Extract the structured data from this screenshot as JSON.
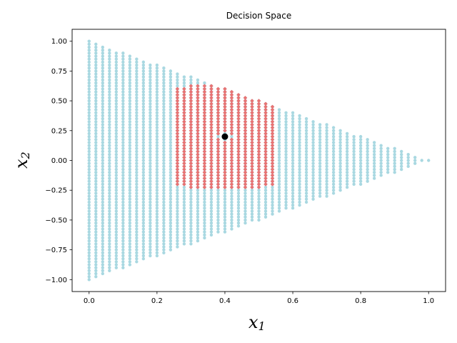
{
  "chart_data": {
    "type": "scatter",
    "title": "Decision Space",
    "xlabel": {
      "base": "x",
      "sub": "1"
    },
    "ylabel": {
      "base": "x",
      "sub": "2"
    },
    "xlim": [
      -0.05,
      1.05
    ],
    "ylim": [
      -1.1,
      1.1
    ],
    "xticks": [
      0.0,
      0.2,
      0.4,
      0.6,
      0.8,
      1.0
    ],
    "xtick_labels": [
      "0.0",
      "0.2",
      "0.4",
      "0.6",
      "0.8",
      "1.0"
    ],
    "yticks": [
      -1.0,
      -0.75,
      -0.5,
      -0.25,
      0.0,
      0.25,
      0.5,
      0.75,
      1.0
    ],
    "ytick_labels": [
      "−1.00",
      "−0.75",
      "−0.50",
      "−0.25",
      "0.00",
      "0.25",
      "0.50",
      "0.75",
      "1.00"
    ],
    "grid": false,
    "series": [
      {
        "marker": "circle",
        "color": "#a9d8e1",
        "region": "triangle",
        "vertices": [
          [
            0.0,
            -1.0
          ],
          [
            0.0,
            1.0
          ],
          [
            1.0,
            0.0
          ]
        ],
        "x_step": 0.02,
        "y_step": 0.025
      },
      {
        "marker": "diamond",
        "color": "#e87373",
        "region": "disk",
        "center": [
          0.4,
          0.2
        ],
        "radius": 0.44,
        "x_range": [
          0.26,
          0.54
        ],
        "x_step": 0.02,
        "y_step": 0.025
      },
      {
        "marker": "circle",
        "color": "#000000",
        "points": [
          [
            0.4,
            0.2
          ]
        ]
      }
    ]
  }
}
